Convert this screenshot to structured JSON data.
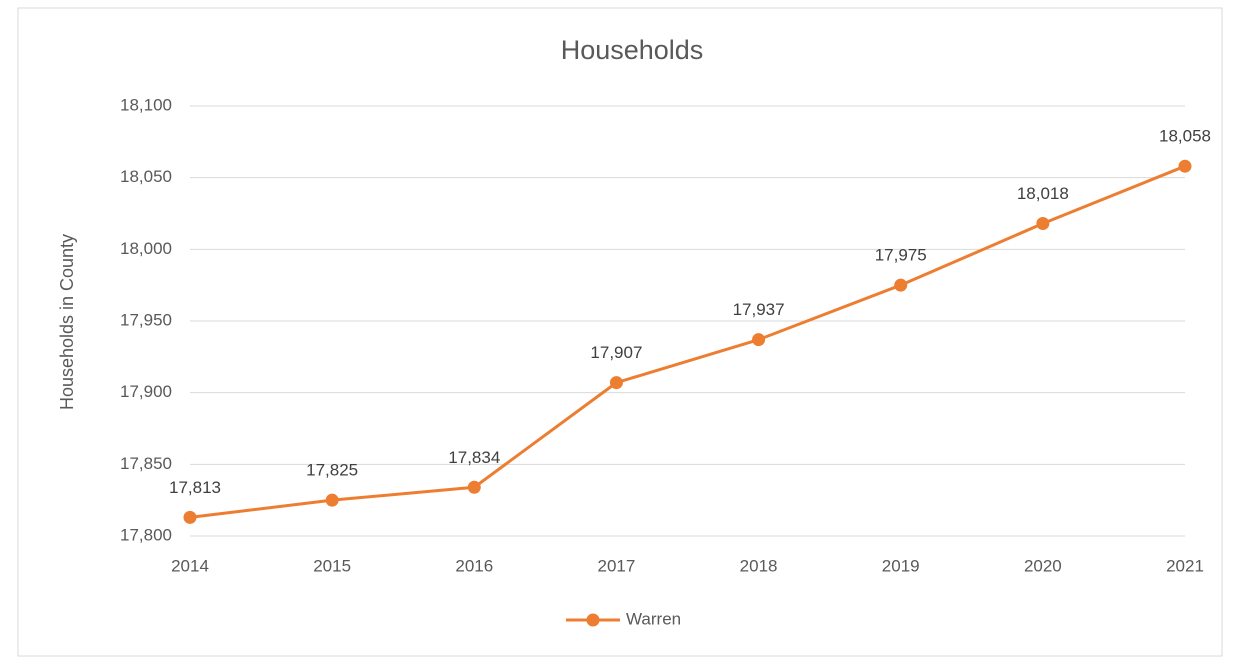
{
  "chart_data": {
    "type": "line",
    "title": "Households",
    "y_label": "Households in County",
    "categories": [
      "2014",
      "2015",
      "2016",
      "2017",
      "2018",
      "2019",
      "2020",
      "2021"
    ],
    "series": [
      {
        "name": "Warren",
        "color": "#ed7d31",
        "values": [
          17813,
          17825,
          17834,
          17907,
          17937,
          17975,
          18018,
          18058
        ],
        "value_labels": [
          "17,813",
          "17,825",
          "17,834",
          "17,907",
          "17,937",
          "17,975",
          "18,018",
          "18,058"
        ]
      }
    ],
    "ylim": [
      17800,
      18100
    ],
    "yticks": [
      {
        "value": 17800,
        "label": "17,800"
      },
      {
        "value": 17850,
        "label": "17,850"
      },
      {
        "value": 17900,
        "label": "17,900"
      },
      {
        "value": 17950,
        "label": "17,950"
      },
      {
        "value": 18000,
        "label": "18,000"
      },
      {
        "value": 18050,
        "label": "18,050"
      },
      {
        "value": 18100,
        "label": "18,100"
      }
    ],
    "grid": true,
    "legend": "bottom"
  }
}
